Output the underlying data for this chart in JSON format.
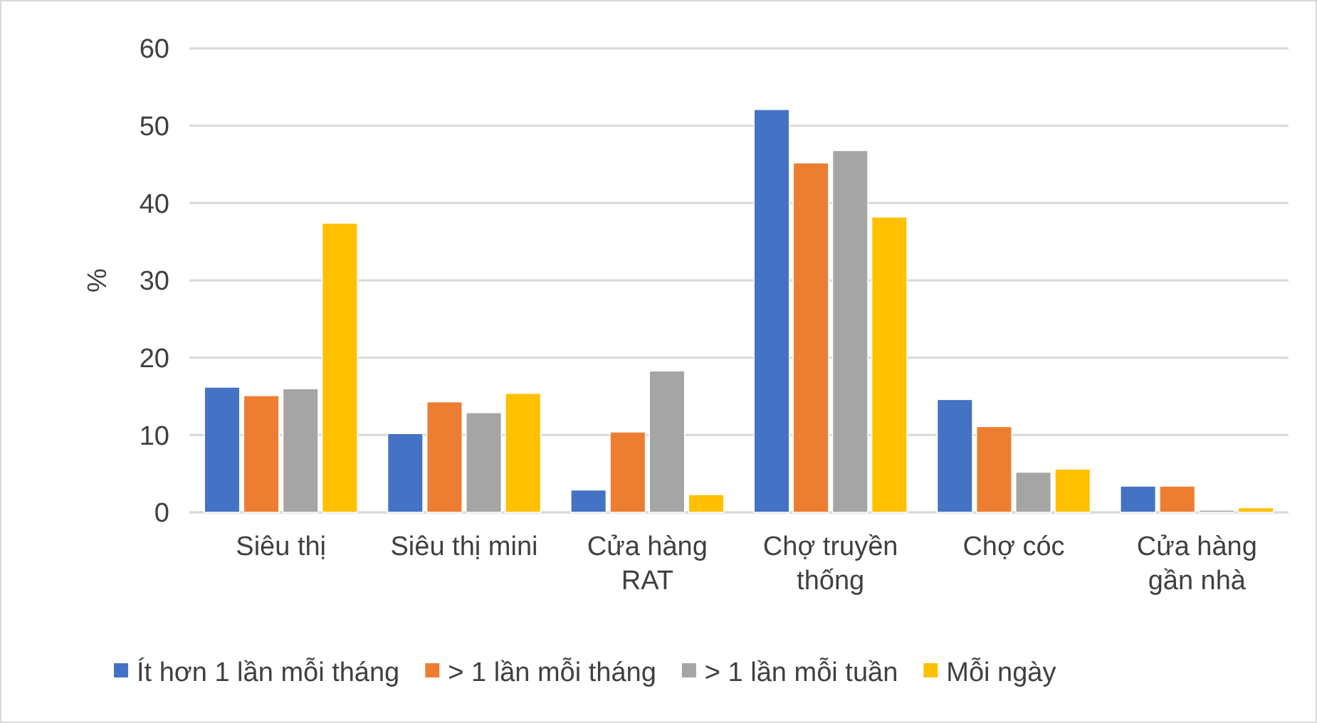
{
  "chart_data": {
    "type": "bar",
    "ylabel": "%",
    "categories": [
      "Siêu thị",
      "Siêu thị mini",
      "Cửa hàng RAT",
      "Chợ truyền thống",
      "Chợ cóc",
      "Cửa hàng gần nhà"
    ],
    "series": [
      {
        "name": "Ít hơn 1 lần mỗi tháng",
        "color": "#4472c4",
        "values": [
          16.2,
          10.2,
          2.9,
          52.1,
          14.6,
          3.4
        ]
      },
      {
        "name": "> 1 lần mỗi tháng",
        "color": "#ed7d31",
        "values": [
          15.1,
          14.3,
          10.4,
          45.2,
          11.1,
          3.4
        ]
      },
      {
        "name": "> 1 lần mỗi tuần",
        "color": "#a5a5a5",
        "values": [
          16.0,
          12.9,
          18.3,
          46.8,
          5.2,
          0.3
        ]
      },
      {
        "name": "Mỗi ngày",
        "color": "#ffc000",
        "values": [
          37.4,
          15.4,
          2.3,
          38.2,
          5.6,
          0.6
        ]
      }
    ],
    "ylim": [
      0,
      60
    ],
    "yticks": [
      0,
      10,
      20,
      30,
      40,
      50,
      60
    ],
    "grid": "y",
    "legend": "bottom"
  }
}
